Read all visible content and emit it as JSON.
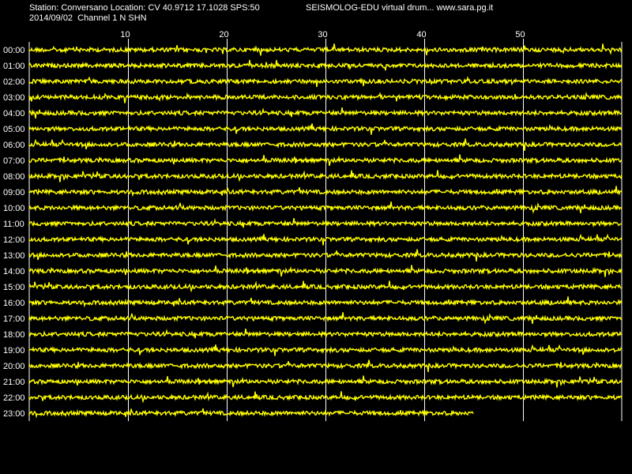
{
  "header": {
    "station_line": "Station: Conversano Location: CV 40.9712 17.1028 SPS:50",
    "date_line": "2014/09/02  Channel 1 N SHN",
    "right_line": "SEISMOLOG-EDU virtual drum... www.sara.pg.it"
  },
  "colors": {
    "background": "#000000",
    "trace": "#ffff00",
    "grid": "#ffffff",
    "text": "#ffffff"
  },
  "chart_data": {
    "type": "line",
    "description_kind": "seismograph drum, 24 hourly traces",
    "x_axis": {
      "ticks": [
        "10",
        "20",
        "30",
        "40",
        "50"
      ],
      "range_minutes": [
        0,
        60
      ]
    },
    "rows": [
      "00:00",
      "01:00",
      "02:00",
      "03:00",
      "04:00",
      "05:00",
      "06:00",
      "07:00",
      "08:00",
      "09:00",
      "10:00",
      "11:00",
      "12:00",
      "13:00",
      "14:00",
      "15:00",
      "16:00",
      "17:00",
      "18:00",
      "19:00",
      "20:00",
      "21:00",
      "22:00",
      "23:00"
    ],
    "last_row_end_minute": 45,
    "grid": true
  }
}
